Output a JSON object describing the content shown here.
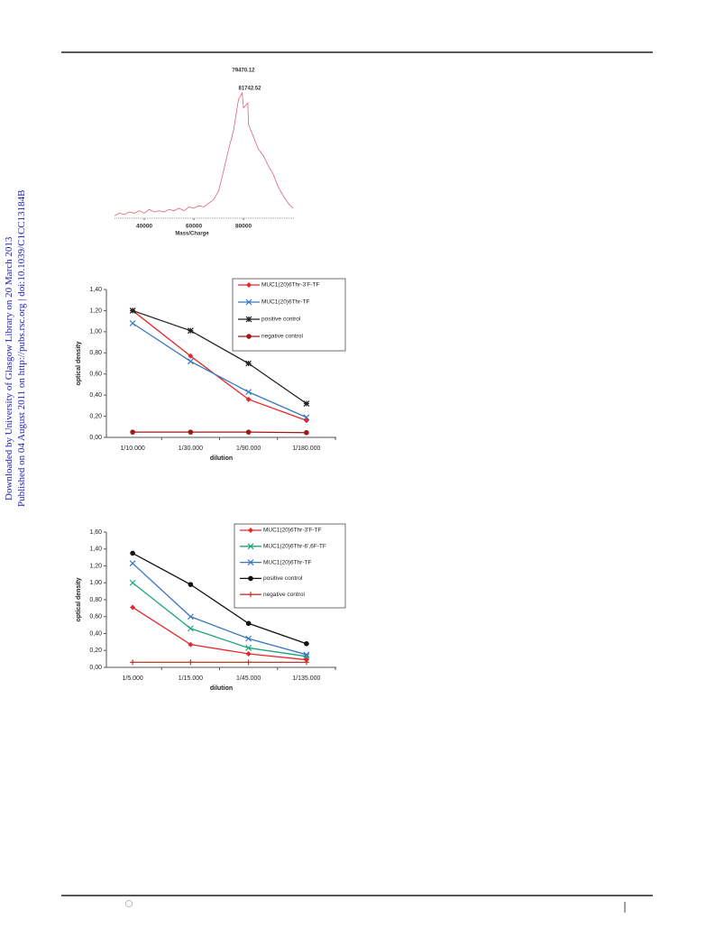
{
  "sidebar": [
    "Downloaded by University of Glasgow Library on 20 March 2013",
    "Published on 04 August 2011 on http://pubs.rsc.org | doi:10.1039/C1CC13184B"
  ],
  "chart_data": [
    {
      "type": "spectrum",
      "xlabel": "Mass/Charge",
      "annotations": [
        "79470.12",
        "81742.52"
      ],
      "x": [
        28000,
        30000,
        32000,
        34000,
        36000,
        38000,
        40000,
        42000,
        44000,
        46000,
        48000,
        50000,
        52000,
        54000,
        56000,
        58000,
        60000,
        62000,
        64000,
        66000,
        68000,
        70000,
        72000,
        74000,
        76000,
        78000,
        79470,
        80000,
        81742,
        82000,
        84000,
        86000,
        88000,
        90000,
        92000,
        94000,
        96000,
        98000,
        100000
      ],
      "values": [
        2,
        4,
        3,
        5,
        4,
        6,
        4,
        7,
        5,
        6,
        5,
        7,
        6,
        8,
        6,
        9,
        8,
        10,
        9,
        12,
        15,
        22,
        38,
        55,
        70,
        95,
        100,
        88,
        92,
        75,
        65,
        55,
        50,
        42,
        35,
        25,
        18,
        12,
        8
      ],
      "color": "#e0607a",
      "xlim": [
        28000,
        100700
      ],
      "ylim": [
        0,
        100
      ],
      "xticks": [
        40000,
        60000,
        80000
      ]
    },
    {
      "type": "line",
      "xlabel": "dilution",
      "ylabel": "optical density",
      "categories": [
        "1/10.000",
        "1/30.000",
        "1/90.000",
        "1/180.000"
      ],
      "ylim": [
        0,
        1.4
      ],
      "yticks": [
        {
          "value": 0,
          "label": "0,00"
        },
        {
          "value": 0.2,
          "label": "0,20"
        },
        {
          "value": 0.4,
          "label": "0,40"
        },
        {
          "value": 0.6,
          "label": "0,60"
        },
        {
          "value": 0.8,
          "label": "0,80"
        },
        {
          "value": 1.0,
          "label": "1,00"
        },
        {
          "value": 1.2,
          "label": "1,20"
        },
        {
          "value": 1.4,
          "label": "1,40"
        }
      ],
      "series": [
        {
          "name": "MUC1(20)6Thr-3'F-TF",
          "color": "#e8262b",
          "marker": "diamond",
          "values": [
            1.2,
            0.77,
            0.36,
            0.16
          ]
        },
        {
          "name": "MUC1(20)6Thr-TF",
          "color": "#3a78c2",
          "marker": "x",
          "values": [
            1.08,
            0.72,
            0.43,
            0.19
          ]
        },
        {
          "name": "positive control",
          "color": "#222222",
          "marker": "star",
          "values": [
            1.2,
            1.01,
            0.7,
            0.32
          ]
        },
        {
          "name": "negative control",
          "color": "#a01818",
          "marker": "circle",
          "values": [
            0.05,
            0.05,
            0.05,
            0.045
          ]
        }
      ]
    },
    {
      "type": "line",
      "xlabel": "dilution",
      "ylabel": "optical density",
      "categories": [
        "1/5.000",
        "1/15.000",
        "1/45.000",
        "1/135.000"
      ],
      "ylim": [
        0,
        1.6
      ],
      "yticks": [
        {
          "value": 0,
          "label": "0,00"
        },
        {
          "value": 0.2,
          "label": "0,20"
        },
        {
          "value": 0.4,
          "label": "0,40"
        },
        {
          "value": 0.6,
          "label": "0,60"
        },
        {
          "value": 0.8,
          "label": "0,80"
        },
        {
          "value": 1.0,
          "label": "1,00"
        },
        {
          "value": 1.2,
          "label": "1,20"
        },
        {
          "value": 1.4,
          "label": "1,40"
        },
        {
          "value": 1.6,
          "label": "1,60"
        }
      ],
      "series": [
        {
          "name": "MUC1(20)6Thr-3'F-TF",
          "color": "#e8262b",
          "marker": "diamond",
          "values": [
            0.71,
            0.27,
            0.16,
            0.09
          ]
        },
        {
          "name": "MUC1(20)6Thr-6',6F-TF",
          "color": "#1fa37a",
          "marker": "x",
          "values": [
            1.0,
            0.46,
            0.23,
            0.13
          ]
        },
        {
          "name": "MUC1(20)6Thr-TF",
          "color": "#3a78c2",
          "marker": "x",
          "values": [
            1.23,
            0.6,
            0.34,
            0.15
          ]
        },
        {
          "name": "positive control",
          "color": "#111111",
          "marker": "circle",
          "values": [
            1.35,
            0.98,
            0.52,
            0.28
          ]
        },
        {
          "name": "negative control",
          "color": "#c0392b",
          "marker": "plus",
          "values": [
            0.06,
            0.06,
            0.06,
            0.06
          ]
        }
      ]
    }
  ]
}
